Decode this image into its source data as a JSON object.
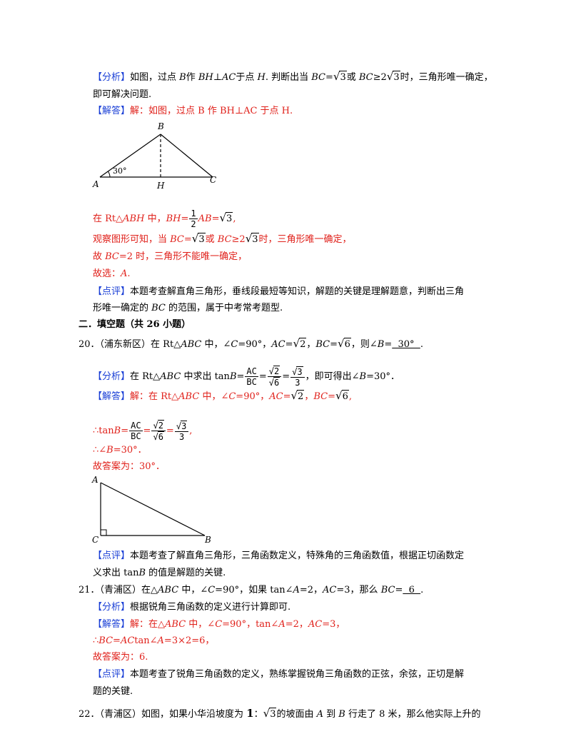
{
  "brackets": {
    "fenxi": "【分析】",
    "jieda": "【解答】",
    "dianping": "【点评】"
  },
  "p19": {
    "fenxi_pre": "如图，过点 ",
    "fenxi_B": "B",
    "fenxi_mid": "作 ",
    "fenxi_BH": "BH",
    "fenxi_perp": "⊥",
    "fenxi_AC": "AC",
    "fenxi_at": "于点 ",
    "fenxi_H": "H",
    "fenxi_judge": ". 判断出当 ",
    "fenxi_BC": "BC",
    "fenxi_eq": "=",
    "sqrt_sym": "√",
    "three": "3",
    "fenxi_or": "或 ",
    "fenxi_ge2": "≥2",
    "fenxi_tail": "时，三角形唯一确定，",
    "fenxi_line2": "即可解决问题.",
    "jieda_text": "解：如图，过点 B 作 BH⊥AC 于点 H.",
    "fig": {
      "B": "B",
      "A": "A",
      "H": "H",
      "C": "C",
      "angle": "30°"
    },
    "half_num": "1",
    "half_den": "2",
    "rt_pre": "在 Rt△",
    "rt_tri": "ABH",
    "rt_mid": " 中，",
    "bh": "BH",
    "eq": "=",
    "ab": "AB",
    "comma": ",",
    "obs_pre": "观察图形可知，当 ",
    "obs_tail": "时，三角形唯一确定，",
    "so_pre": "故 ",
    "so_tail": "=2 时，三角形不能唯一确定，",
    "choose_pre": "故选：",
    "choose_A": "A",
    "choose_dot": ".",
    "dianping_l1": "本题考查解直角三角形，垂线段最短等知识，解题的关键是理解题意，判断出三角",
    "dianping_l2a": "形唯一确定的 ",
    "dianping_l2b": " 的范围，属于中考常考题型."
  },
  "section2": "二．填空题（共 26 小题）",
  "q20": {
    "num": "20．",
    "src": "（浦东新区）在 Rt△",
    "tri": "ABC",
    "mid": " 中，∠",
    "C": "C",
    "c90": "=90°，",
    "AC": "AC",
    "two": "2",
    "BC": "BC",
    "six": "6",
    "then": "，则∠",
    "B": "B",
    "answer": "  30°  ",
    "sep": "，",
    "end": ".",
    "fenxi_pre": "在 Rt△",
    "fenxi_mid": " 中求出 tan",
    "frac_num": "AC",
    "frac_den": "BC",
    "frac3_den": "3",
    "fenxi_tail": "，即可得出∠",
    "fenxi_tail2": "=30°．",
    "jieda_pre": "解：在 Rt△",
    "jieda_90": "=90°，",
    "therefore_tan": "∴tan",
    "therefore_angle": "∴∠",
    "eq30": "=30°．",
    "ans_label": "故答案为：30°．",
    "fig": {
      "A": "A",
      "C": "C",
      "B": "B"
    },
    "dianping_l1": "本题考查了解直角三角形，三角函数定义，特殊角的三角函数值，根据正切函数定",
    "dianping_l2a": "义求出 tan",
    "dianping_l2b": " 的值是解题的关键."
  },
  "q21": {
    "num": "21．",
    "q_pre": "（青浦区）在△",
    "tri": "ABC",
    "mid": " 中，∠",
    "C": "C",
    "c90": "=90°，如果 tan∠",
    "A": "A",
    "eq2": "=2，",
    "AC": "AC",
    "eq3": "=3，那么 ",
    "BC": "BC",
    "eq": "=",
    "answer": "  6  ",
    "end": ".",
    "fenxi": "根据锐角三角函数的定义进行计算即可.",
    "jieda_pre": "解：在△",
    "jieda_c": "=90°，tan∠",
    "jieda_eq3": "=3，",
    "therefore": "∴",
    "calc_mid": "tan∠",
    "calc_tail": "=3×2=6，",
    "ans_label": "故答案为：6.",
    "dianping_l1": "本题考查了锐角三角函数的定义，熟练掌握锐角三角函数的正弦，余弦，正切是解",
    "dianping_l2": "题的关键."
  },
  "q22": {
    "num": "22．",
    "text_pre": "（青浦区）如图，如果小华沿坡度为 ",
    "one": "1",
    "colon": "：",
    "three": "3",
    "text_mid": "的坡面由 ",
    "A": "A",
    "to": " 到 ",
    "B": "B",
    "text_tail": " 行走了 8 米，那么他实际上升的"
  }
}
